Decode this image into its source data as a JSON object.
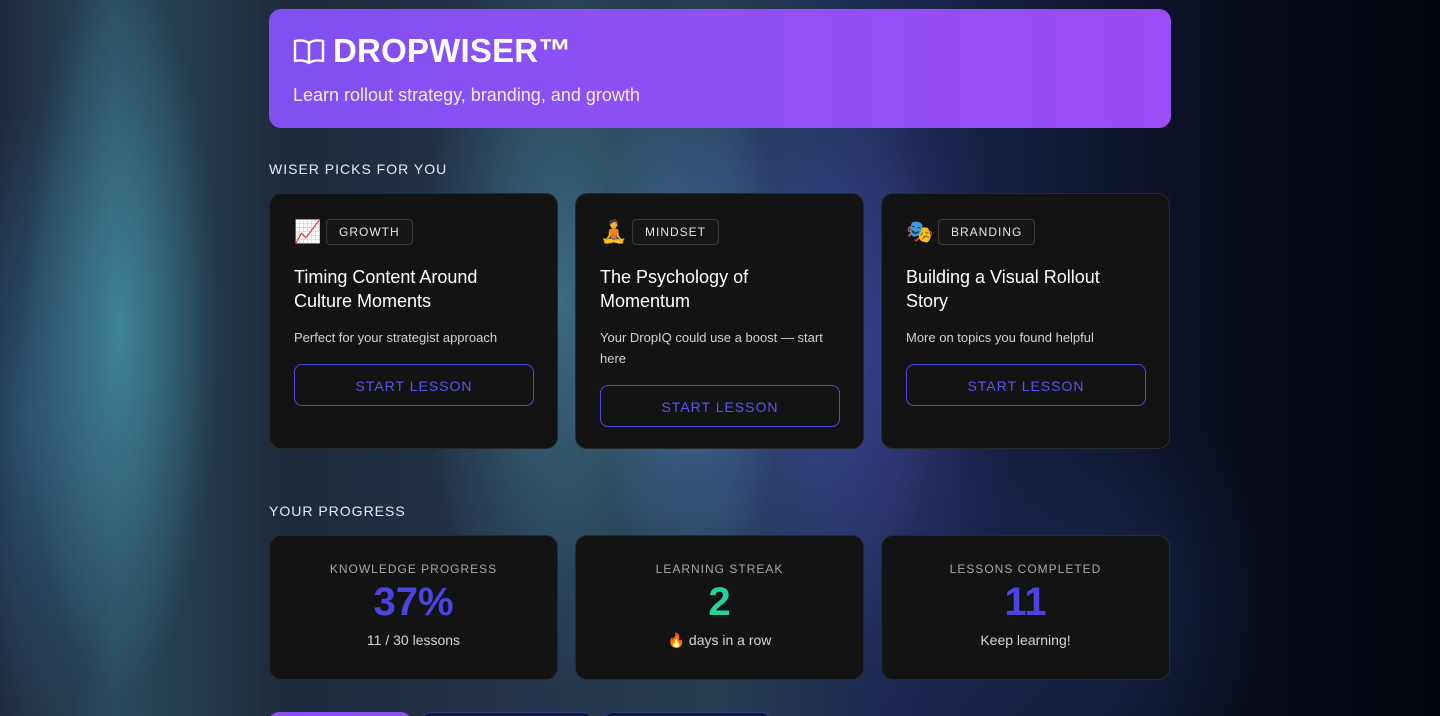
{
  "header": {
    "title": "DROPWISER™",
    "subtitle": "Learn rollout strategy, branding, and growth",
    "icon": "open-book-icon"
  },
  "picks": {
    "section_label": "WISER PICKS FOR YOU",
    "cards": [
      {
        "emoji": "📈",
        "icon": "chart-increasing-icon",
        "tag": "GROWTH",
        "title": "Timing Content Around Culture Moments",
        "description": "Perfect for your strategist approach",
        "button": "START LESSON"
      },
      {
        "emoji": "🧘",
        "icon": "meditation-icon",
        "tag": "MINDSET",
        "title": "The Psychology of Momentum",
        "description": "Your DropIQ could use a boost — start here",
        "button": "START LESSON"
      },
      {
        "emoji": "🎭",
        "icon": "theater-masks-icon",
        "tag": "BRANDING",
        "title": "Building a Visual Rollout Story",
        "description": "More on topics you found helpful",
        "button": "START LESSON"
      }
    ]
  },
  "progress": {
    "section_label": "YOUR PROGRESS",
    "stats": [
      {
        "label": "KNOWLEDGE PROGRESS",
        "value": "37%",
        "sub": "11 / 30 lessons",
        "color": "#4b44e0"
      },
      {
        "label": "LEARNING STREAK",
        "value": "2",
        "sub": "🔥 days in a row",
        "color": "#22d3a0"
      },
      {
        "label": "LESSONS COMPLETED",
        "value": "11",
        "sub": "Keep learning!",
        "color": "#4b44e0"
      }
    ]
  },
  "colors": {
    "accent_purple": "#8b4ff4",
    "button_indigo": "#5048e8",
    "streak_green": "#22d3a0",
    "card_bg": "#131313"
  }
}
